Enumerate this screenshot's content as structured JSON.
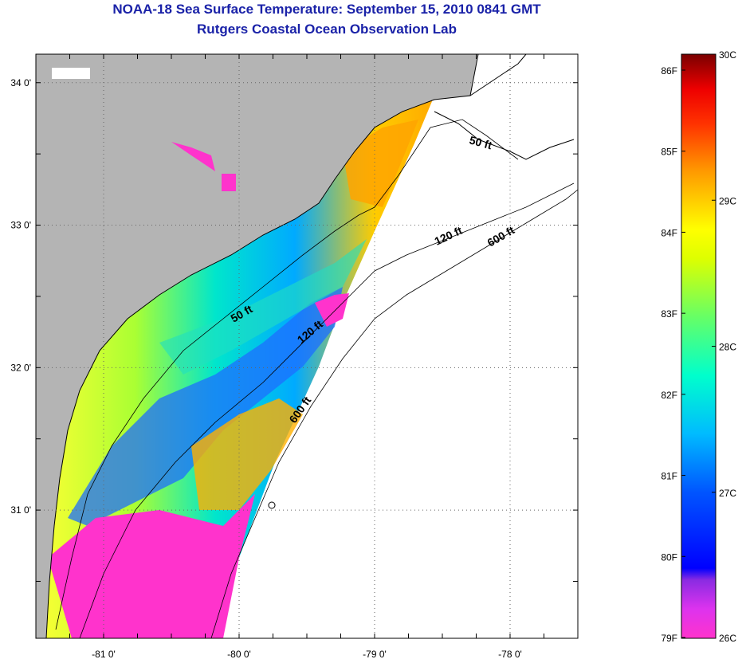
{
  "title": "NOAA-18 Sea Surface Temperature:  September 15, 2010 0841 GMT",
  "subtitle": "Rutgers Coastal Ocean Observation Lab",
  "map": {
    "lon_labels": [
      "-81 0'",
      "-80 0'",
      "-79 0'",
      "-78 0'"
    ],
    "lon_values": [
      -81,
      -80,
      -79,
      -78
    ],
    "lat_labels": [
      "34 0'",
      "33 0'",
      "32 0'",
      "31 0'"
    ],
    "lat_values": [
      34,
      33,
      32,
      31
    ],
    "lon_range": [
      -81.5,
      -77.5
    ],
    "lat_range": [
      30.1,
      34.2
    ],
    "grid": "dotted",
    "land_color": "#b4b4b4",
    "no_data_color": "#ffffff",
    "contours": [
      {
        "label": "50 ft"
      },
      {
        "label": "120 ft"
      },
      {
        "label": "600 ft"
      }
    ]
  },
  "colorbar": {
    "f_labels": [
      "86F",
      "85F",
      "84F",
      "83F",
      "82F",
      "81F",
      "80F",
      "79F"
    ],
    "c_labels": [
      "30C",
      "29C",
      "28C",
      "27C",
      "26C"
    ],
    "colors": [
      "#ff33cc",
      "#cc33ff",
      "#7a2bff",
      "#0000ff",
      "#0066ff",
      "#00ccff",
      "#00ffcc",
      "#33ff66",
      "#ccff00",
      "#ffff00",
      "#ffcc00",
      "#ff9900",
      "#ff3300",
      "#ff0000",
      "#cc0000",
      "#7a0000"
    ]
  }
}
